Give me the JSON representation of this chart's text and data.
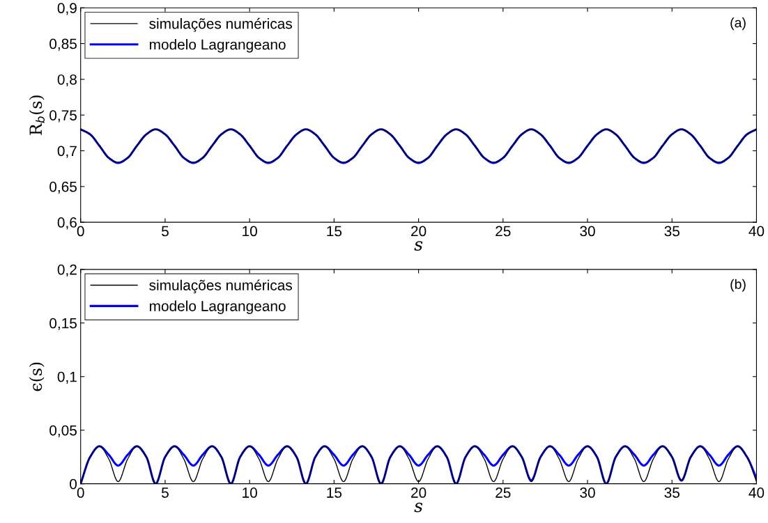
{
  "chart_data": [
    {
      "type": "line",
      "xlabel": "s",
      "ylabel": "R$_{b}$(s)",
      "annotations": [
        "(a)"
      ],
      "legend": "top left",
      "grid": false,
      "x": [
        0,
        0.56,
        1.11,
        1.67,
        2.22,
        2.78,
        3.33,
        3.89,
        4.44,
        5,
        5.56,
        6.11,
        6.67,
        7.22,
        7.78,
        8.33,
        8.89,
        9.44,
        10,
        10.56,
        11.11,
        11.67,
        12.22,
        12.78,
        13.33,
        13.89,
        14.44,
        15,
        15.56,
        16.11,
        16.67,
        17.22,
        17.78,
        18.33,
        18.89,
        19.44,
        20,
        20.56,
        21.11,
        21.67,
        22.22,
        22.78,
        23.33,
        23.89,
        24.44,
        25,
        25.56,
        26.11,
        26.67,
        27.22,
        27.78,
        28.33,
        28.89,
        29.44,
        30,
        30.56,
        31.11,
        31.67,
        32.22,
        32.78,
        33.33,
        33.89,
        34.44,
        35,
        35.56,
        36.11,
        36.67,
        37.22,
        37.78,
        38.33,
        38.89,
        39.44,
        40
      ],
      "xlim": [
        0,
        40
      ],
      "xticks": [
        0,
        5,
        10,
        15,
        20,
        25,
        30,
        35,
        40
      ],
      "ylim": [
        0.6,
        0.9
      ],
      "yticks": [
        {
          "value": 0.6,
          "label": "0,6"
        },
        {
          "value": 0.65,
          "label": "0,65"
        },
        {
          "value": 0.7,
          "label": "0,7"
        },
        {
          "value": 0.75,
          "label": "0,75"
        },
        {
          "value": 0.8,
          "label": "0,8"
        },
        {
          "value": 0.85,
          "label": "0,85"
        },
        {
          "value": 0.9,
          "label": "0,9"
        }
      ],
      "series": [
        {
          "name": "simulações numéricas",
          "color": "#000000",
          "values": [
            0.73,
            0.723,
            0.707,
            0.69,
            0.684,
            0.69,
            0.707,
            0.723,
            0.73,
            0.723,
            0.707,
            0.69,
            0.684,
            0.69,
            0.707,
            0.723,
            0.73,
            0.723,
            0.707,
            0.69,
            0.684,
            0.69,
            0.707,
            0.723,
            0.73,
            0.723,
            0.707,
            0.69,
            0.684,
            0.69,
            0.707,
            0.723,
            0.73,
            0.723,
            0.707,
            0.69,
            0.684,
            0.69,
            0.707,
            0.723,
            0.73,
            0.723,
            0.707,
            0.69,
            0.684,
            0.69,
            0.707,
            0.723,
            0.73,
            0.723,
            0.707,
            0.69,
            0.684,
            0.69,
            0.707,
            0.723,
            0.73,
            0.723,
            0.707,
            0.69,
            0.684,
            0.69,
            0.707,
            0.723,
            0.73,
            0.723,
            0.707,
            0.69,
            0.684,
            0.69,
            0.707,
            0.723,
            0.73
          ]
        },
        {
          "name": "modelo Lagrangeano",
          "color": "#0000ff",
          "values": [
            0.73,
            0.723,
            0.707,
            0.69,
            0.683,
            0.69,
            0.707,
            0.723,
            0.73,
            0.723,
            0.707,
            0.69,
            0.683,
            0.69,
            0.707,
            0.723,
            0.73,
            0.723,
            0.707,
            0.69,
            0.683,
            0.69,
            0.707,
            0.723,
            0.73,
            0.723,
            0.707,
            0.69,
            0.683,
            0.69,
            0.707,
            0.723,
            0.73,
            0.723,
            0.707,
            0.69,
            0.683,
            0.69,
            0.707,
            0.723,
            0.73,
            0.723,
            0.707,
            0.69,
            0.683,
            0.69,
            0.707,
            0.723,
            0.73,
            0.723,
            0.707,
            0.69,
            0.683,
            0.69,
            0.707,
            0.723,
            0.73,
            0.723,
            0.707,
            0.69,
            0.683,
            0.69,
            0.707,
            0.723,
            0.73,
            0.723,
            0.707,
            0.69,
            0.683,
            0.69,
            0.707,
            0.723,
            0.73
          ]
        }
      ]
    },
    {
      "type": "line",
      "xlabel": "s",
      "ylabel": "ϵ(s)",
      "annotations": [
        "(b)"
      ],
      "legend": "top left",
      "grid": false,
      "x": [
        0,
        0.56,
        1.11,
        1.67,
        2.22,
        2.78,
        3.33,
        3.89,
        4.44,
        5,
        5.56,
        6.11,
        6.67,
        7.22,
        7.78,
        8.33,
        8.89,
        9.44,
        10,
        10.56,
        11.11,
        11.67,
        12.22,
        12.78,
        13.33,
        13.89,
        14.44,
        15,
        15.56,
        16.11,
        16.67,
        17.22,
        17.78,
        18.33,
        18.89,
        19.44,
        20,
        20.56,
        21.11,
        21.67,
        22.22,
        22.78,
        23.33,
        23.89,
        24.44,
        25,
        25.56,
        26.11,
        26.67,
        27.22,
        27.78,
        28.33,
        28.89,
        29.44,
        30,
        30.56,
        31.11,
        31.67,
        32.22,
        32.78,
        33.33,
        33.89,
        34.44,
        35,
        35.56,
        36.11,
        36.67,
        37.22,
        37.78,
        38.33,
        38.89,
        39.44,
        40
      ],
      "xlim": [
        0,
        40
      ],
      "xticks": [
        0,
        5,
        10,
        15,
        20,
        25,
        30,
        35,
        40
      ],
      "ylim": [
        0,
        0.2
      ],
      "yticks": [
        0,
        {
          "value": 0.05,
          "label": "0,05"
        },
        {
          "value": 0.1,
          "label": "0,1"
        },
        {
          "value": 0.15,
          "label": "0,15"
        },
        {
          "value": 0.2,
          "label": "0,2"
        }
      ],
      "series": [
        {
          "name": "simulações numéricas",
          "color": "#000000",
          "values": [
            0,
            0.025,
            0.035,
            0.023,
            0.002,
            0.023,
            0.035,
            0.025,
            0,
            0.025,
            0.035,
            0.023,
            0.002,
            0.023,
            0.035,
            0.025,
            0,
            0.025,
            0.035,
            0.023,
            0.002,
            0.023,
            0.035,
            0.025,
            0,
            0.025,
            0.035,
            0.023,
            0.002,
            0.023,
            0.035,
            0.025,
            0,
            0.025,
            0.035,
            0.023,
            0.002,
            0.023,
            0.035,
            0.025,
            0,
            0.025,
            0.035,
            0.023,
            0.002,
            0.023,
            0.035,
            0.025,
            0.002,
            0.025,
            0.035,
            0.023,
            0.002,
            0.023,
            0.035,
            0.025,
            0,
            0.025,
            0.035,
            0.023,
            0.002,
            0.023,
            0.035,
            0.025,
            0.003,
            0.025,
            0.035,
            0.023,
            0.002,
            0.023,
            0.035,
            0.025,
            0.002
          ]
        },
        {
          "name": "modelo Lagrangeano",
          "color": "#0000ff",
          "values": [
            0,
            0.025,
            0.035,
            0.027,
            0.017,
            0.027,
            0.035,
            0.025,
            0,
            0.025,
            0.035,
            0.027,
            0.017,
            0.027,
            0.035,
            0.025,
            0,
            0.025,
            0.035,
            0.027,
            0.017,
            0.027,
            0.035,
            0.025,
            0,
            0.025,
            0.035,
            0.027,
            0.017,
            0.027,
            0.035,
            0.025,
            0,
            0.025,
            0.035,
            0.027,
            0.017,
            0.027,
            0.035,
            0.025,
            0,
            0.025,
            0.035,
            0.027,
            0.017,
            0.027,
            0.035,
            0.025,
            0.003,
            0.025,
            0.035,
            0.027,
            0.017,
            0.027,
            0.035,
            0.025,
            0,
            0.025,
            0.035,
            0.027,
            0.017,
            0.027,
            0.035,
            0.025,
            0.003,
            0.025,
            0.035,
            0.027,
            0.017,
            0.027,
            0.035,
            0.025,
            0.005
          ]
        }
      ]
    }
  ]
}
